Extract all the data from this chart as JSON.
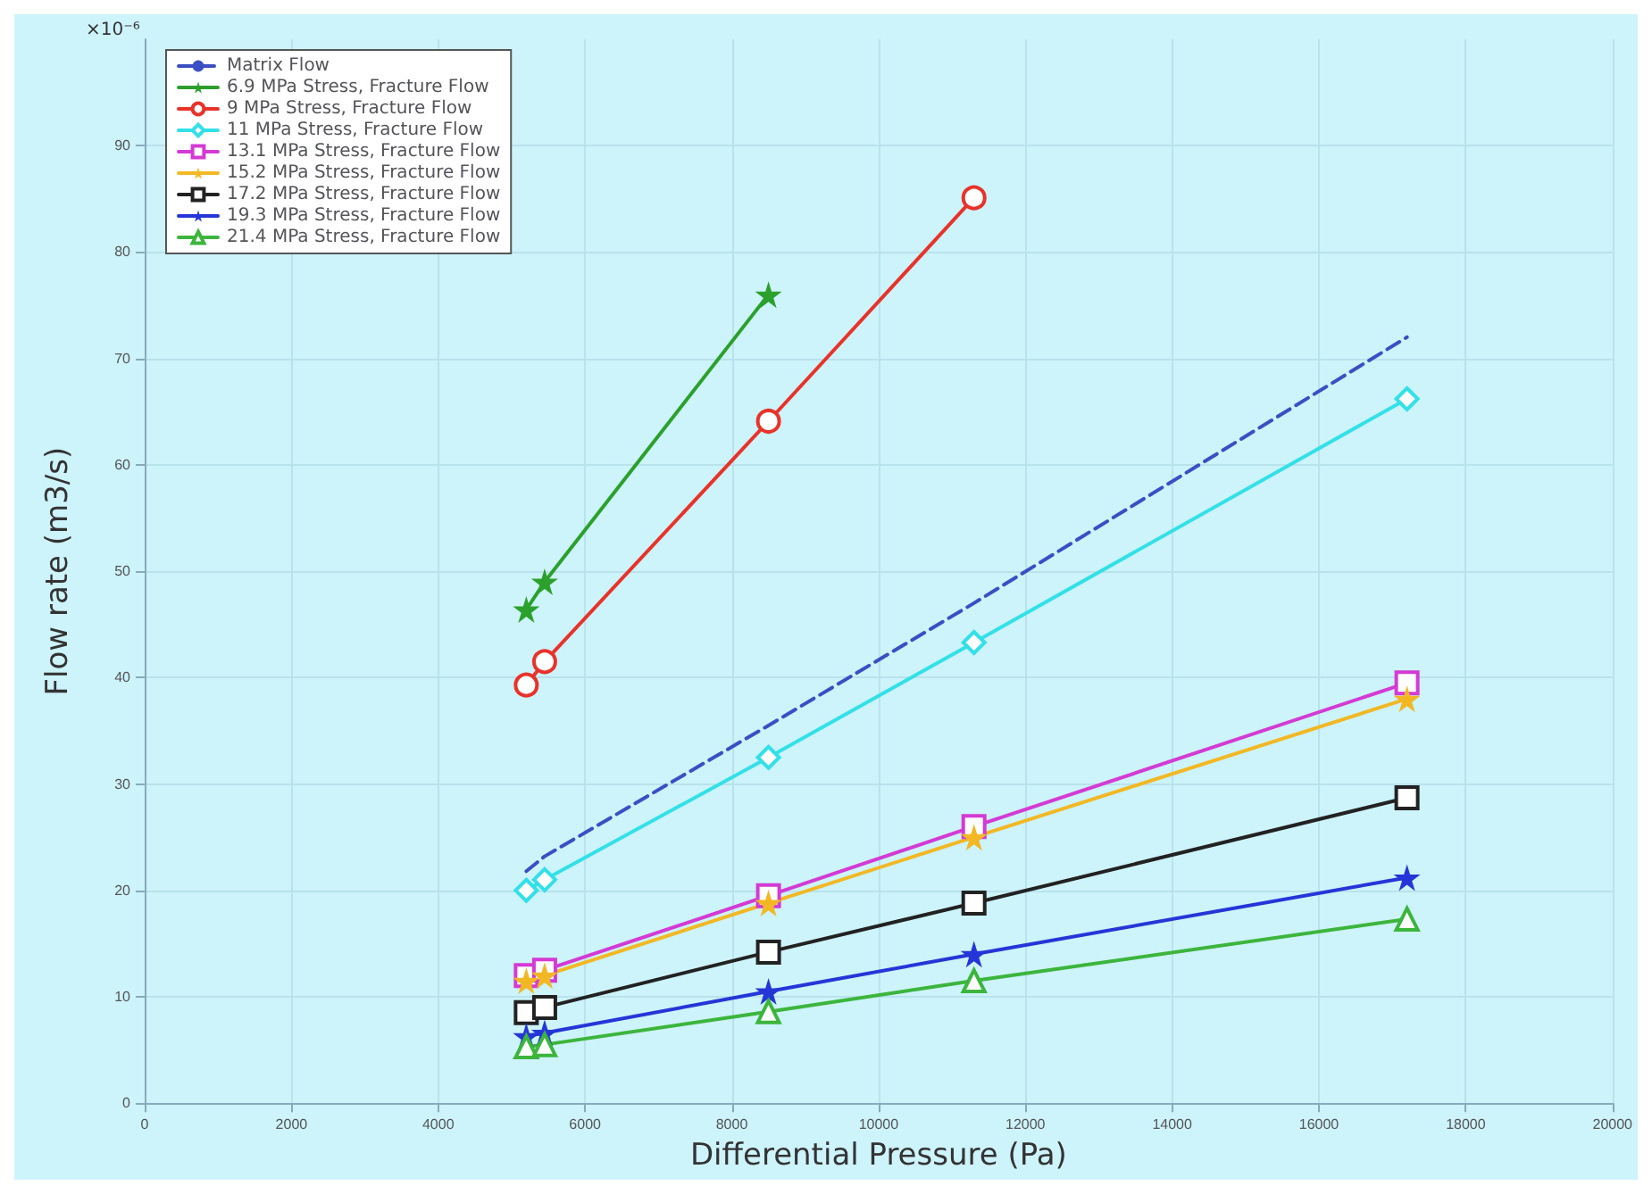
{
  "chart_data": {
    "type": "line",
    "xlabel": "Differential Pressure (Pa)",
    "ylabel": "Flow rate (m3/s)",
    "annotations": [
      "×10⁻⁶"
    ],
    "x": [
      5200,
      5450,
      8500,
      11300,
      17200
    ],
    "xlim": [
      0,
      20000
    ],
    "xticks": [
      0,
      2000,
      4000,
      6000,
      8000,
      10000,
      12000,
      14000,
      16000,
      18000,
      20000
    ],
    "ylim": [
      0,
      100
    ],
    "yticks": [
      0,
      10,
      20,
      30,
      40,
      50,
      60,
      70,
      80,
      90
    ],
    "grid": true,
    "legend": "top left",
    "series": [
      {
        "name": "Matrix Flow",
        "color": "#3b4fc4",
        "values": [
          21.8,
          23.2,
          35.5,
          47,
          72
        ],
        "line_style": "dashed",
        "marker": "none"
      },
      {
        "name": "6.9 MPa Stress, Fracture Flow",
        "color": "#2ca02c",
        "values": [
          46.4,
          49,
          76,
          null,
          null
        ],
        "marker": "star"
      },
      {
        "name": "9 MPa Stress, Fracture Flow",
        "color": "#e8332a",
        "values": [
          39.3,
          41.5,
          64.1,
          85.1,
          null
        ],
        "marker": "circle"
      },
      {
        "name": "11 MPa Stress, Fracture Flow",
        "color": "#33e0e8",
        "values": [
          20,
          21,
          32.5,
          43.3,
          66.2
        ],
        "marker": "diamond"
      },
      {
        "name": "13.1 MPa Stress, Fracture Flow",
        "color": "#d43ad4",
        "values": [
          12,
          12.5,
          19.5,
          26,
          39.5
        ],
        "marker": "square"
      },
      {
        "name": "15.2 MPa Stress, Fracture Flow",
        "color": "#f2b824",
        "values": [
          11.5,
          12,
          18.8,
          25,
          38
        ],
        "marker": "star"
      },
      {
        "name": "17.2 MPa Stress, Fracture Flow",
        "color": "#222222",
        "values": [
          8.5,
          9,
          14.2,
          18.8,
          28.7
        ],
        "marker": "square"
      },
      {
        "name": "19.3 MPa Stress, Fracture Flow",
        "color": "#2536d8",
        "values": [
          6.3,
          6.6,
          10.5,
          14,
          21.2
        ],
        "marker": "star"
      },
      {
        "name": "21.4 MPa Stress, Fracture Flow",
        "color": "#3cb53c",
        "values": [
          5.3,
          5.5,
          8.6,
          11.5,
          17.3
        ],
        "marker": "triangle"
      }
    ]
  }
}
